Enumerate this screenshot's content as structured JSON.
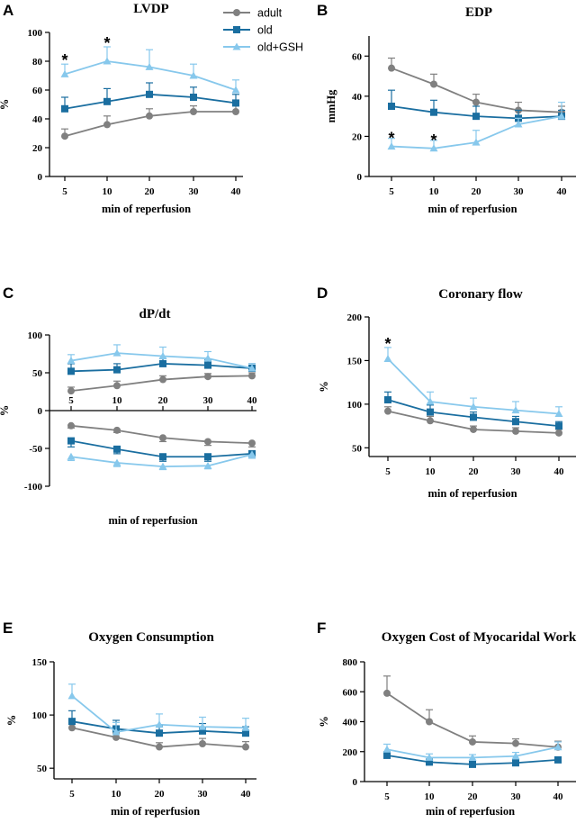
{
  "legend": {
    "items": [
      {
        "name": "adult",
        "color": "#808080",
        "marker": "circle"
      },
      {
        "name": "old",
        "color": "#1a6ea0",
        "marker": "square"
      },
      {
        "name": "old+GSH",
        "color": "#87c8ec",
        "marker": "triangle"
      }
    ]
  },
  "chart_data": [
    {
      "id": "A",
      "letter": "A",
      "type": "line",
      "title": "LVDP",
      "xlabel": "min of reperfusion",
      "ylabel": "%",
      "x": [
        5,
        10,
        20,
        30,
        40
      ],
      "yticks": [
        0,
        20,
        40,
        60,
        80,
        100
      ],
      "ylim": [
        0,
        100
      ],
      "series": [
        {
          "name": "adult",
          "values": [
            28,
            36,
            42,
            45,
            45
          ],
          "err": [
            5,
            6,
            5,
            4,
            4
          ]
        },
        {
          "name": "old",
          "values": [
            47,
            52,
            57,
            55,
            51
          ],
          "err": [
            8,
            9,
            8,
            7,
            6
          ]
        },
        {
          "name": "old+GSH",
          "values": [
            71,
            80,
            76,
            70,
            60
          ],
          "err": [
            7,
            10,
            12,
            8,
            7
          ]
        }
      ],
      "stars": [
        {
          "x": 5,
          "label": "*"
        },
        {
          "x": 10,
          "label": "*"
        }
      ]
    },
    {
      "id": "B",
      "letter": "B",
      "type": "line",
      "title": "EDP",
      "xlabel": "min of reperfusion",
      "ylabel": "mmHg",
      "x": [
        5,
        10,
        20,
        30,
        40
      ],
      "yticks": [
        0,
        20,
        40,
        60
      ],
      "ylim": [
        0,
        70
      ],
      "series": [
        {
          "name": "adult",
          "values": [
            54,
            46,
            37,
            33,
            32
          ],
          "err": [
            5,
            5,
            4,
            4,
            3
          ]
        },
        {
          "name": "old",
          "values": [
            35,
            32,
            30,
            29,
            30
          ],
          "err": [
            8,
            6,
            5,
            4,
            3
          ]
        },
        {
          "name": "old+GSH",
          "values": [
            15,
            14,
            17,
            26,
            30
          ],
          "err": [
            4,
            4,
            6,
            3,
            7
          ]
        }
      ],
      "stars": [
        {
          "x": 5,
          "label": "*"
        },
        {
          "x": 10,
          "label": "*"
        }
      ]
    },
    {
      "id": "C",
      "letter": "C",
      "type": "line",
      "title": "dP/dt",
      "xlabel": "min of reperfusion",
      "ylabel": "%",
      "x": [
        5,
        10,
        20,
        30,
        40
      ],
      "yticks": [
        -100,
        -50,
        0,
        50,
        100
      ],
      "ylim": [
        -100,
        100
      ],
      "series": [
        {
          "name": "adult",
          "values": [
            26,
            33,
            41,
            45,
            46
          ],
          "err": [
            5,
            6,
            5,
            4,
            4
          ]
        },
        {
          "name": "old",
          "values": [
            52,
            54,
            62,
            60,
            56
          ],
          "err": [
            10,
            8,
            7,
            7,
            6
          ]
        },
        {
          "name": "old+GSH",
          "values": [
            66,
            76,
            72,
            69,
            56
          ],
          "err": [
            8,
            11,
            12,
            9,
            6
          ]
        },
        {
          "name": "adult",
          "values": [
            -20,
            -26,
            -36,
            -41,
            -43
          ],
          "err": [
            3,
            3,
            5,
            5,
            5
          ]
        },
        {
          "name": "old",
          "values": [
            -40,
            -51,
            -61,
            -61,
            -57
          ],
          "err": [
            8,
            6,
            6,
            6,
            6
          ]
        },
        {
          "name": "old+GSH",
          "values": [
            -61,
            -69,
            -74,
            -73,
            -58
          ],
          "err": [
            5,
            5,
            4,
            4,
            5
          ]
        }
      ],
      "stars": []
    },
    {
      "id": "D",
      "letter": "D",
      "type": "line",
      "title": "Coronary flow",
      "xlabel": "min of reperfusion",
      "ylabel": "%",
      "x": [
        5,
        10,
        20,
        30,
        40
      ],
      "yticks": [
        50,
        100,
        150,
        200
      ],
      "ylim": [
        40,
        200
      ],
      "series": [
        {
          "name": "adult",
          "values": [
            92,
            81,
            71,
            69,
            67
          ],
          "err": [
            5,
            5,
            4,
            4,
            4
          ]
        },
        {
          "name": "old",
          "values": [
            105,
            91,
            85,
            80,
            75
          ],
          "err": [
            9,
            8,
            6,
            6,
            5
          ]
        },
        {
          "name": "old+GSH",
          "values": [
            152,
            103,
            97,
            93,
            89
          ],
          "err": [
            13,
            11,
            10,
            10,
            8
          ]
        }
      ],
      "stars": [
        {
          "x": 5,
          "label": "*"
        }
      ]
    },
    {
      "id": "E",
      "letter": "E",
      "type": "line",
      "title": "Oxygen Consumption",
      "xlabel": "min of reperfusion",
      "ylabel": "%",
      "x": [
        5,
        10,
        20,
        30,
        40
      ],
      "yticks": [
        50,
        100,
        150
      ],
      "ylim": [
        40,
        150
      ],
      "series": [
        {
          "name": "adult",
          "values": [
            88,
            79,
            70,
            73,
            70
          ],
          "err": [
            4,
            4,
            4,
            5,
            5
          ]
        },
        {
          "name": "old",
          "values": [
            94,
            87,
            83,
            85,
            83
          ],
          "err": [
            10,
            8,
            7,
            7,
            6
          ]
        },
        {
          "name": "old+GSH",
          "values": [
            118,
            84,
            91,
            89,
            88
          ],
          "err": [
            11,
            9,
            10,
            9,
            9
          ]
        }
      ],
      "stars": []
    },
    {
      "id": "F",
      "letter": "F",
      "type": "line",
      "title": "Oxygen Cost of Myocaridal Work",
      "xlabel": "min of reperfusion",
      "ylabel": "%",
      "x": [
        5,
        10,
        20,
        30,
        40
      ],
      "yticks": [
        0,
        200,
        400,
        600,
        800
      ],
      "ylim": [
        0,
        800
      ],
      "series": [
        {
          "name": "adult",
          "values": [
            590,
            400,
            265,
            255,
            230
          ],
          "err": [
            115,
            80,
            40,
            30,
            40
          ]
        },
        {
          "name": "old",
          "values": [
            175,
            130,
            115,
            125,
            145
          ],
          "err": [
            25,
            15,
            10,
            10,
            15
          ]
        },
        {
          "name": "old+GSH",
          "values": [
            215,
            160,
            160,
            170,
            230
          ],
          "err": [
            35,
            25,
            20,
            25,
            35
          ]
        }
      ],
      "stars": []
    }
  ]
}
